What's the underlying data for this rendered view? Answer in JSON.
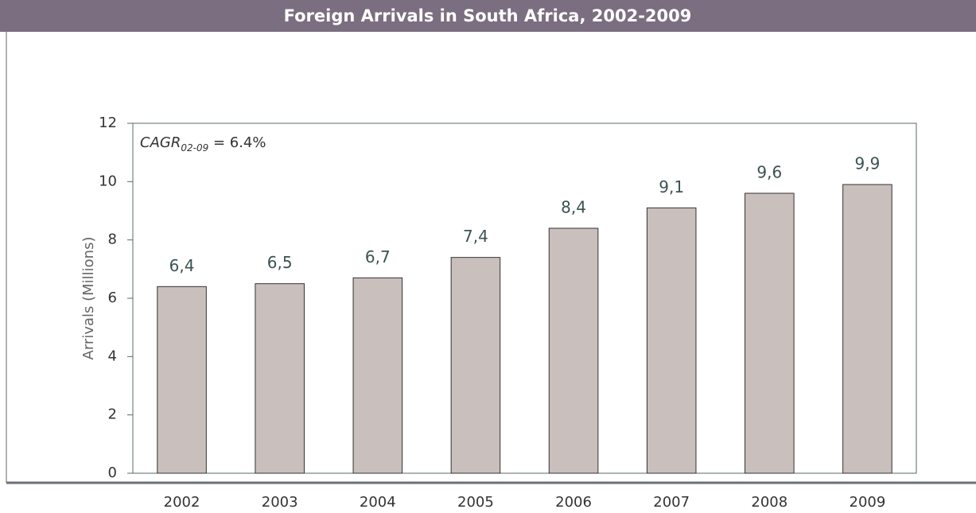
{
  "chart_data": {
    "type": "bar",
    "title": "Foreign Arrivals in South Africa, 2002-2009",
    "ylabel": "Arrivals (Millions)",
    "annotation": {
      "text": "CAGR",
      "subscript": "02-09",
      "suffix": " = 6.4%"
    },
    "categories": [
      "2002",
      "2003",
      "2004",
      "2005",
      "2006",
      "2007",
      "2008",
      "2009"
    ],
    "values": [
      6.4,
      6.5,
      6.7,
      7.4,
      8.4,
      9.1,
      9.6,
      9.9
    ],
    "value_labels": [
      "6,4",
      "6,5",
      "6,7",
      "7,4",
      "8,4",
      "9,1",
      "9,6",
      "9,9"
    ],
    "color": "#c9bfbc",
    "ylim": [
      0,
      12
    ],
    "yticks": [
      0,
      2,
      4,
      6,
      8,
      10,
      12
    ],
    "grid": false
  }
}
